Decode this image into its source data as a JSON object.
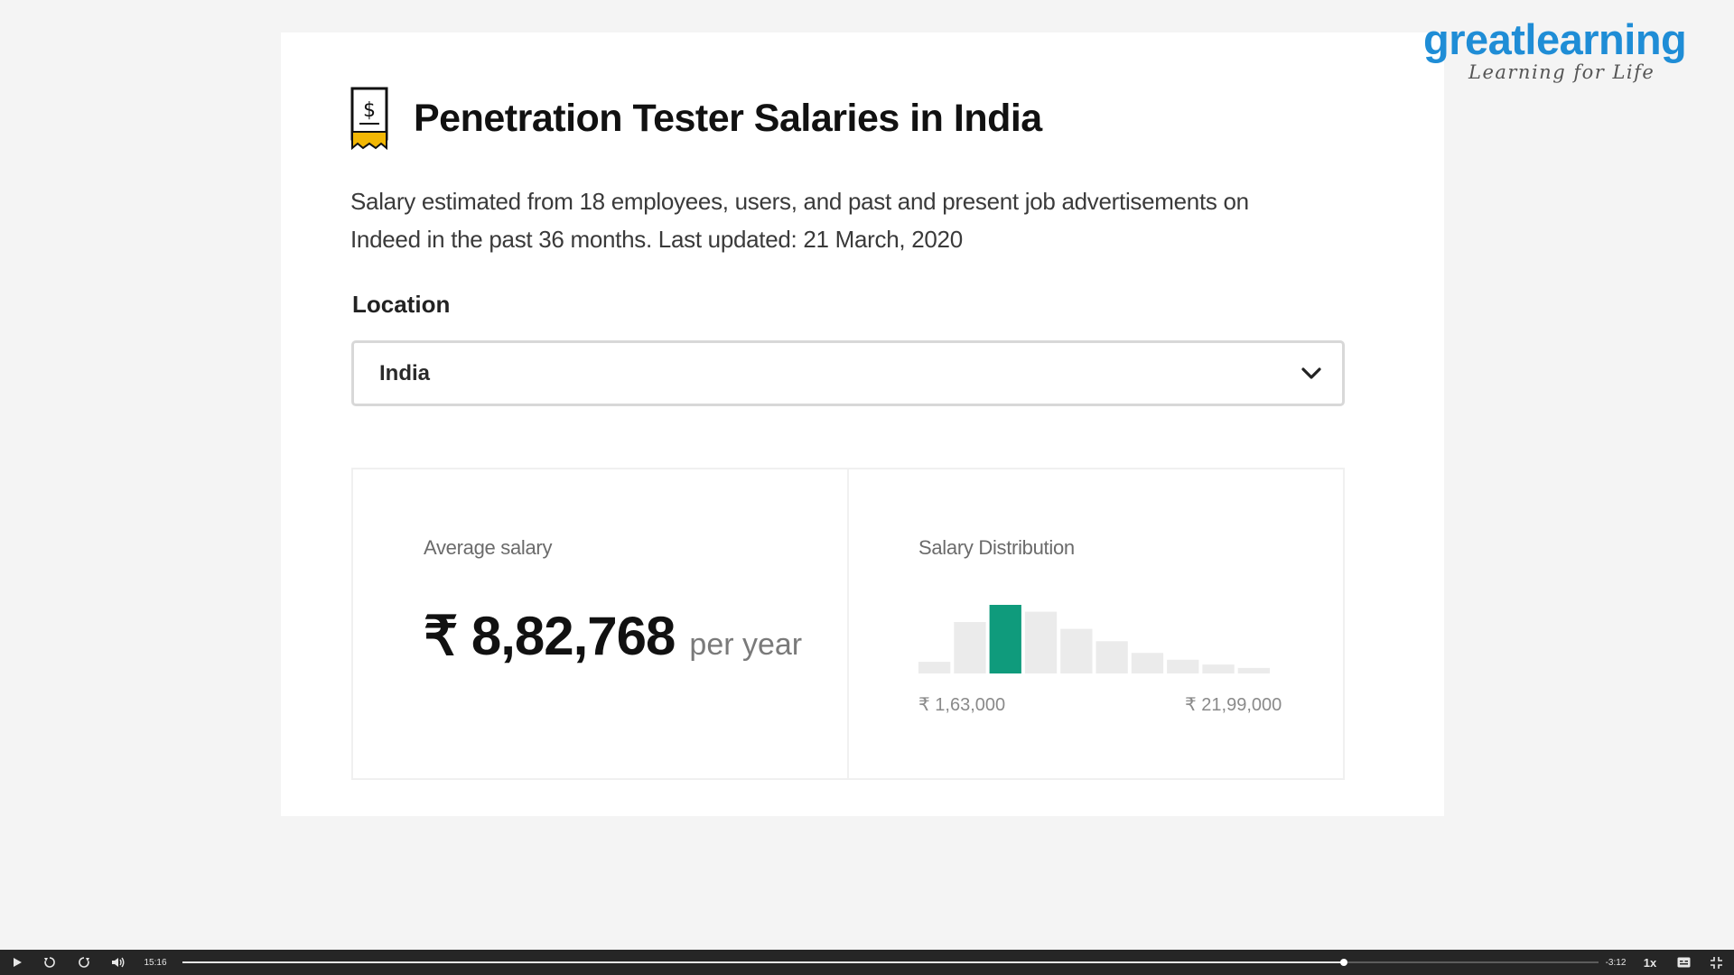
{
  "slide": {
    "title": "Penetration Tester Salaries in India",
    "icon": "salary-document-icon",
    "description": "Salary estimated from 18 employees, users, and past and present job advertisements on Indeed in the past 36 months. Last updated: 21 March, 2020",
    "location": {
      "label": "Location",
      "selected": "India"
    },
    "average": {
      "label": "Average salary",
      "value": "₹ 8,82,768",
      "unit": "per year"
    },
    "distribution": {
      "label": "Salary Distribution",
      "min_label": "₹ 1,63,000",
      "max_label": "₹ 21,99,000",
      "relative_heights": [
        0.17,
        0.75,
        1.0,
        0.9,
        0.65,
        0.47,
        0.3,
        0.2,
        0.13,
        0.08
      ],
      "highlight_index": 2,
      "colors": {
        "bar": "#ebebeb",
        "highlight": "#0f9b7c"
      }
    }
  },
  "logo": {
    "wordmark": "greatlearning",
    "tagline": "Learning for Life",
    "color": "#1f8dd6"
  },
  "player": {
    "current_time": "15:16",
    "remaining_time": "-3:12",
    "speed": "1x",
    "progress_fraction": 0.82
  }
}
